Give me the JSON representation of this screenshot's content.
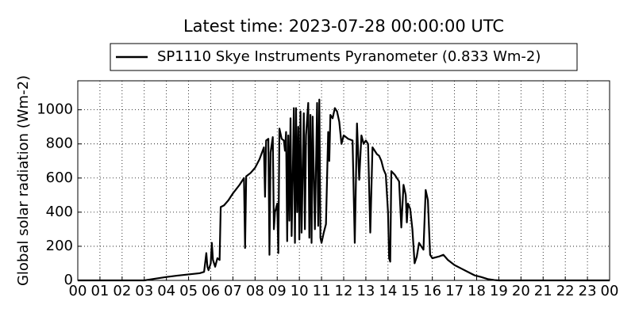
{
  "chart_data": {
    "type": "line",
    "title": "Latest time: 2023-07-28 00:00:00 UTC",
    "y_label": "Global solar radiation (Wm-2)",
    "legend": "upper center",
    "grid": true,
    "xlim": [
      0,
      24
    ],
    "ylim": [
      0,
      1170
    ],
    "yticks": [
      0,
      200,
      400,
      600,
      800,
      1000
    ],
    "xticks": [
      {
        "value": 0,
        "label": "00"
      },
      {
        "value": 1,
        "label": "01"
      },
      {
        "value": 2,
        "label": "02"
      },
      {
        "value": 3,
        "label": "03"
      },
      {
        "value": 4,
        "label": "04"
      },
      {
        "value": 5,
        "label": "05"
      },
      {
        "value": 6,
        "label": "06"
      },
      {
        "value": 7,
        "label": "07"
      },
      {
        "value": 8,
        "label": "08"
      },
      {
        "value": 9,
        "label": "09"
      },
      {
        "value": 10,
        "label": "10"
      },
      {
        "value": 11,
        "label": "11"
      },
      {
        "value": 12,
        "label": "12"
      },
      {
        "value": 13,
        "label": "13"
      },
      {
        "value": 14,
        "label": "14"
      },
      {
        "value": 15,
        "label": "15"
      },
      {
        "value": 16,
        "label": "16"
      },
      {
        "value": 17,
        "label": "17"
      },
      {
        "value": 18,
        "label": "18"
      },
      {
        "value": 19,
        "label": "19"
      },
      {
        "value": 20,
        "label": "20"
      },
      {
        "value": 21,
        "label": "21"
      },
      {
        "value": 22,
        "label": "22"
      },
      {
        "value": 23,
        "label": "23"
      },
      {
        "value": 24,
        "label": "00"
      }
    ],
    "x": [
      0,
      3.0,
      3.5,
      4,
      4.5,
      5,
      5.5,
      5.7,
      5.8,
      5.85,
      5.9,
      6.0,
      6.05,
      6.1,
      6.2,
      6.3,
      6.4,
      6.45,
      6.6,
      6.8,
      7.0,
      7.3,
      7.5,
      7.55,
      7.6,
      7.8,
      8.0,
      8.2,
      8.4,
      8.45,
      8.5,
      8.6,
      8.65,
      8.7,
      8.8,
      8.85,
      8.9,
      9.0,
      9.05,
      9.1,
      9.2,
      9.3,
      9.35,
      9.4,
      9.45,
      9.5,
      9.55,
      9.6,
      9.65,
      9.7,
      9.75,
      9.8,
      9.85,
      9.9,
      9.95,
      10.0,
      10.05,
      10.1,
      10.2,
      10.25,
      10.3,
      10.4,
      10.45,
      10.5,
      10.55,
      10.6,
      10.7,
      10.8,
      10.85,
      10.9,
      10.95,
      11.0,
      11.1,
      11.2,
      11.3,
      11.35,
      11.4,
      11.5,
      11.6,
      11.7,
      11.8,
      11.9,
      12.0,
      12.2,
      12.4,
      12.5,
      12.6,
      12.7,
      12.8,
      12.9,
      13.0,
      13.1,
      13.2,
      13.3,
      13.5,
      13.6,
      13.7,
      13.8,
      13.9,
      14.0,
      14.05,
      14.1,
      14.15,
      14.3,
      14.5,
      14.6,
      14.7,
      14.8,
      14.85,
      14.9,
      15.0,
      15.1,
      15.2,
      15.3,
      15.4,
      15.5,
      15.6,
      15.7,
      15.8,
      15.9,
      16.0,
      16.3,
      16.5,
      16.7,
      17.0,
      17.3,
      17.6,
      17.9,
      18.2,
      18.5,
      18.8,
      19.0,
      24
    ],
    "series": [
      {
        "name": "SP1110 Skye Instruments Pyranometer (0.833 Wm-2)",
        "color": "#000000",
        "values": [
          0,
          0,
          10,
          20,
          28,
          35,
          42,
          50,
          160,
          80,
          60,
          100,
          220,
          120,
          80,
          130,
          120,
          430,
          440,
          470,
          510,
          560,
          600,
          190,
          610,
          630,
          660,
          710,
          780,
          490,
          820,
          830,
          150,
          750,
          840,
          300,
          400,
          450,
          160,
          890,
          830,
          820,
          760,
          870,
          230,
          850,
          350,
          950,
          260,
          600,
          1010,
          220,
          1010,
          400,
          900,
          240,
          990,
          280,
          980,
          300,
          850,
          1040,
          250,
          970,
          220,
          960,
          300,
          1040,
          320,
          1060,
          250,
          220,
          280,
          330,
          870,
          700,
          970,
          950,
          1010,
          990,
          930,
          800,
          850,
          830,
          820,
          220,
          920,
          590,
          850,
          800,
          820,
          800,
          280,
          780,
          740,
          730,
          700,
          650,
          620,
          400,
          130,
          110,
          640,
          620,
          580,
          310,
          560,
          500,
          340,
          450,
          420,
          300,
          100,
          140,
          220,
          200,
          180,
          530,
          470,
          150,
          130,
          140,
          150,
          120,
          90,
          70,
          50,
          30,
          20,
          8,
          2,
          0,
          0
        ]
      }
    ]
  }
}
